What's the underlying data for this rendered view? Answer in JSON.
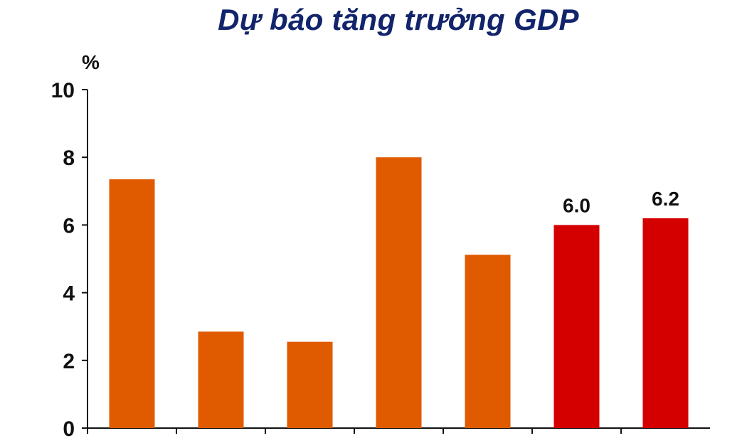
{
  "chart_data": {
    "type": "bar",
    "title": "Dự báo tăng trưởng GDP",
    "ylabel": "%",
    "xlabel": "",
    "ylim": [
      0,
      10
    ],
    "yticks": [
      0,
      2,
      4,
      6,
      8,
      10
    ],
    "grid": false,
    "legend": "none",
    "categories": [
      "",
      "",
      "",
      "",
      "",
      "",
      ""
    ],
    "values": [
      7.35,
      2.85,
      2.55,
      8.0,
      5.12,
      6.0,
      6.2
    ],
    "data_labels": [
      "",
      "",
      "",
      "",
      "",
      "6.0",
      "6.2"
    ],
    "colors": [
      "#e05a00",
      "#e05a00",
      "#e05a00",
      "#e05a00",
      "#e05a00",
      "#d40000",
      "#d40000"
    ]
  }
}
